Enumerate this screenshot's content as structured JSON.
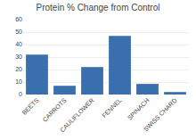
{
  "chart_data": {
    "type": "bar",
    "title": "Protein % Change from Control",
    "categories": [
      "BEETS",
      "CARROTS",
      "CAULIFLOWER",
      "FENNEL",
      "SPINACH",
      "SWISS CHARD"
    ],
    "values": [
      32,
      7,
      22,
      47,
      8.5,
      2
    ],
    "color": "#3a6fad",
    "ylim": [
      0,
      60
    ],
    "yticks": [
      0,
      10,
      20,
      30,
      40,
      50,
      60
    ],
    "grid": true
  }
}
